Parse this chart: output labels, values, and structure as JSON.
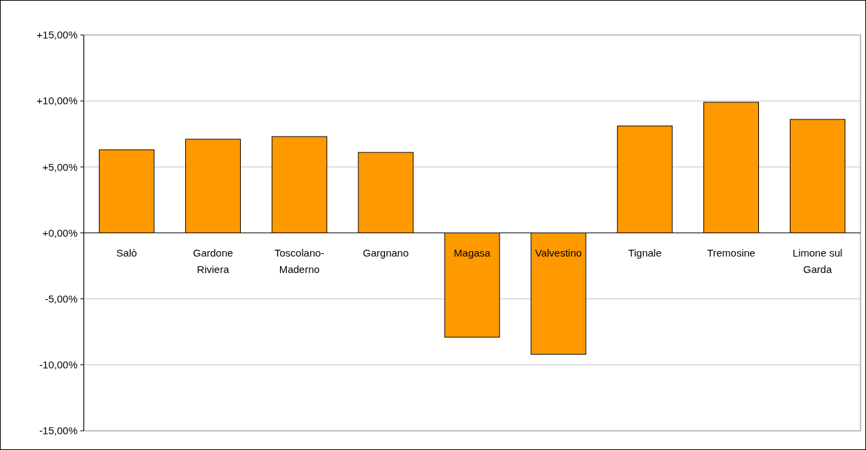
{
  "chart_data": {
    "type": "bar",
    "categories": [
      "Salò",
      "Gardone Riviera",
      "Toscolano-Maderno",
      "Gargnano",
      "Magasa",
      "Valvestino",
      "Tignale",
      "Tremosine",
      "Limone sul Garda"
    ],
    "values": [
      6.3,
      7.1,
      7.3,
      6.1,
      -7.9,
      -9.2,
      8.1,
      9.9,
      8.6
    ],
    "color": "#ff9900",
    "ylim": [
      -15,
      15
    ],
    "yticks": [
      {
        "value": -15,
        "label": "-15,00%"
      },
      {
        "value": -10,
        "label": "-10,00%"
      },
      {
        "value": -5,
        "label": "-5,00%"
      },
      {
        "value": 0,
        "label": "+0,00%"
      },
      {
        "value": 5,
        "label": "+5,00%"
      },
      {
        "value": 10,
        "label": "+10,00%"
      },
      {
        "value": 15,
        "label": "+15,00%"
      }
    ],
    "grid": "y"
  }
}
